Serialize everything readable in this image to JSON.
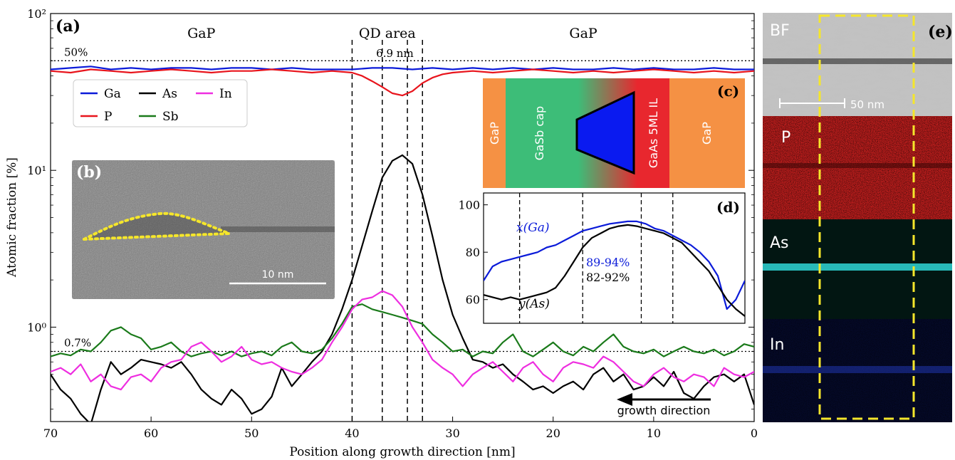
{
  "chart_data": [
    {
      "panel": "(a)",
      "type": "line",
      "xlabel": "Position along growth direction [nm]",
      "ylabel": "Atomic fraction [%]",
      "xlim": [
        70,
        0
      ],
      "ylim": [
        0.25,
        100
      ],
      "yscale": "log",
      "x_ticks": [
        70,
        60,
        50,
        40,
        30,
        20,
        10,
        0
      ],
      "y_ticks": [
        {
          "v": 1,
          "label": "10⁰"
        },
        {
          "v": 10,
          "label": "10¹"
        },
        {
          "v": 100,
          "label": "10²"
        }
      ],
      "region_labels": [
        {
          "text": "GaP",
          "x": 55
        },
        {
          "text": "QD area",
          "x": 36.5
        },
        {
          "text": "GaP",
          "x": 17
        }
      ],
      "reference_lines": [
        {
          "y": 50,
          "label": "50%"
        },
        {
          "y": 0.7,
          "label": "0.7%"
        }
      ],
      "vlines": [
        40,
        37,
        34.5,
        33
      ],
      "annotation_width": {
        "text": "6.9 nm",
        "x1": 37,
        "x2": 34.5
      },
      "arrow_label": "growth direction",
      "legend_position": "upper-left",
      "series": [
        {
          "name": "Ga",
          "color": "#0b1bd9",
          "x": [
            70,
            68,
            66,
            64,
            62,
            60,
            58,
            56,
            54,
            52,
            50,
            48,
            46,
            44,
            42,
            40,
            38,
            36,
            34,
            32,
            30,
            28,
            26,
            24,
            22,
            20,
            18,
            16,
            14,
            12,
            10,
            8,
            6,
            4,
            2,
            0
          ],
          "y": [
            44,
            45,
            46,
            44,
            45,
            44,
            45,
            45,
            44,
            45,
            45,
            44,
            45,
            44,
            44,
            44,
            45,
            45,
            44,
            45,
            44,
            45,
            44,
            45,
            44,
            45,
            44,
            44,
            45,
            44,
            45,
            44,
            44,
            45,
            44,
            44
          ]
        },
        {
          "name": "P",
          "color": "#e8141c",
          "x": [
            70,
            68,
            66,
            64,
            62,
            60,
            58,
            56,
            54,
            52,
            50,
            48,
            46,
            44,
            42,
            40,
            39,
            38,
            37,
            36,
            35,
            34,
            33,
            32,
            31,
            30,
            28,
            26,
            24,
            22,
            20,
            18,
            16,
            14,
            12,
            10,
            8,
            6,
            4,
            2,
            0
          ],
          "y": [
            43,
            42,
            44,
            43,
            42,
            43,
            44,
            43,
            42,
            43,
            43,
            44,
            43,
            42,
            43,
            42,
            40,
            37,
            34,
            31,
            30,
            32,
            36,
            39,
            41,
            42,
            43,
            42,
            43,
            44,
            43,
            42,
            43,
            42,
            43,
            44,
            43,
            42,
            43,
            42,
            43
          ]
        },
        {
          "name": "As",
          "color": "#000000",
          "x": [
            70,
            69,
            68,
            67,
            66,
            65,
            64,
            63,
            62,
            61,
            60,
            59,
            58,
            57,
            56,
            55,
            54,
            53,
            52,
            51,
            50,
            49,
            48,
            47,
            46,
            45,
            44,
            43,
            42,
            41,
            40,
            39,
            38,
            37,
            36,
            35,
            34,
            33,
            32,
            31,
            30,
            29,
            28,
            27,
            26,
            25,
            24,
            23,
            22,
            21,
            20,
            19,
            18,
            17,
            16,
            15,
            14,
            13,
            12,
            11,
            10,
            9,
            8,
            7,
            6,
            5,
            4,
            3,
            2,
            1,
            0
          ],
          "y": [
            0.5,
            0.4,
            0.35,
            0.28,
            0.24,
            0.4,
            0.6,
            0.5,
            0.55,
            0.62,
            0.6,
            0.58,
            0.55,
            0.6,
            0.5,
            0.4,
            0.35,
            0.32,
            0.4,
            0.35,
            0.28,
            0.3,
            0.36,
            0.55,
            0.42,
            0.5,
            0.6,
            0.7,
            0.9,
            1.3,
            2.0,
            3.3,
            5.5,
            9,
            11.5,
            12.5,
            11,
            7,
            3.8,
            2.0,
            1.2,
            0.85,
            0.62,
            0.6,
            0.55,
            0.58,
            0.5,
            0.45,
            0.4,
            0.42,
            0.38,
            0.42,
            0.45,
            0.4,
            0.5,
            0.55,
            0.45,
            0.5,
            0.4,
            0.42,
            0.48,
            0.42,
            0.52,
            0.38,
            0.35,
            0.42,
            0.48,
            0.5,
            0.45,
            0.5,
            0.32
          ]
        },
        {
          "name": "Sb",
          "color": "#1a7a1a",
          "x": [
            70,
            69,
            68,
            67,
            66,
            65,
            64,
            63,
            62,
            61,
            60,
            59,
            58,
            57,
            56,
            55,
            54,
            53,
            52,
            51,
            50,
            49,
            48,
            47,
            46,
            45,
            44,
            43,
            42,
            41,
            40,
            39,
            38,
            37,
            36,
            35,
            34,
            33,
            32,
            31,
            30,
            29,
            28,
            27,
            26,
            25,
            24,
            23,
            22,
            21,
            20,
            19,
            18,
            17,
            16,
            15,
            14,
            13,
            12,
            11,
            10,
            9,
            8,
            7,
            6,
            5,
            4,
            3,
            2,
            1,
            0
          ],
          "y": [
            0.65,
            0.68,
            0.66,
            0.72,
            0.7,
            0.8,
            0.95,
            1.0,
            0.9,
            0.85,
            0.72,
            0.75,
            0.8,
            0.7,
            0.65,
            0.68,
            0.7,
            0.66,
            0.7,
            0.65,
            0.68,
            0.7,
            0.66,
            0.75,
            0.8,
            0.7,
            0.68,
            0.72,
            0.85,
            1.05,
            1.35,
            1.4,
            1.3,
            1.25,
            1.2,
            1.15,
            1.1,
            1.05,
            0.9,
            0.8,
            0.7,
            0.72,
            0.65,
            0.7,
            0.68,
            0.8,
            0.9,
            0.7,
            0.65,
            0.72,
            0.8,
            0.7,
            0.66,
            0.75,
            0.7,
            0.8,
            0.9,
            0.75,
            0.7,
            0.68,
            0.72,
            0.65,
            0.7,
            0.75,
            0.7,
            0.68,
            0.72,
            0.66,
            0.7,
            0.78,
            0.75
          ]
        },
        {
          "name": "In",
          "color": "#ee2ee0",
          "x": [
            70,
            69,
            68,
            67,
            66,
            65,
            64,
            63,
            62,
            61,
            60,
            59,
            58,
            57,
            56,
            55,
            54,
            53,
            52,
            51,
            50,
            49,
            48,
            47,
            46,
            45,
            44,
            43,
            42,
            41,
            40,
            39,
            38,
            37,
            36,
            35,
            34,
            33,
            32,
            31,
            30,
            29,
            28,
            27,
            26,
            25,
            24,
            23,
            22,
            21,
            20,
            19,
            18,
            17,
            16,
            15,
            14,
            13,
            12,
            11,
            10,
            9,
            8,
            7,
            6,
            5,
            4,
            3,
            2,
            1,
            0
          ],
          "y": [
            0.52,
            0.55,
            0.5,
            0.58,
            0.45,
            0.5,
            0.42,
            0.4,
            0.48,
            0.5,
            0.45,
            0.55,
            0.6,
            0.62,
            0.75,
            0.8,
            0.7,
            0.6,
            0.65,
            0.75,
            0.62,
            0.58,
            0.6,
            0.55,
            0.52,
            0.5,
            0.55,
            0.62,
            0.8,
            1.0,
            1.3,
            1.5,
            1.55,
            1.7,
            1.6,
            1.35,
            1.0,
            0.8,
            0.62,
            0.55,
            0.5,
            0.42,
            0.5,
            0.55,
            0.6,
            0.52,
            0.45,
            0.55,
            0.6,
            0.5,
            0.45,
            0.55,
            0.6,
            0.58,
            0.55,
            0.65,
            0.6,
            0.52,
            0.45,
            0.42,
            0.5,
            0.55,
            0.48,
            0.45,
            0.5,
            0.48,
            0.42,
            0.55,
            0.5,
            0.48,
            0.52
          ]
        }
      ]
    },
    {
      "panel": "(d)",
      "type": "line",
      "xlim": [
        29,
        0
      ],
      "ylim": [
        50,
        105
      ],
      "y_ticks": [
        60,
        80,
        100
      ],
      "vlines": [
        25,
        18,
        11.5,
        8
      ],
      "annotations": [
        {
          "text": "89-94%",
          "color": "#0b1bd9"
        },
        {
          "text": "82-92%",
          "color": "#000000"
        }
      ],
      "series": [
        {
          "name": "x(Ga)",
          "color": "#0b1bd9",
          "x": [
            29,
            28,
            27,
            26,
            25,
            24,
            23,
            22,
            21,
            20,
            19,
            18,
            17,
            16,
            15,
            14,
            13,
            12,
            11,
            10,
            9,
            8,
            7,
            6,
            5,
            4,
            3,
            2,
            1,
            0
          ],
          "y": [
            68,
            74,
            76,
            77,
            78,
            79,
            80,
            82,
            83,
            85,
            87,
            89,
            90,
            91,
            92,
            92.5,
            93,
            93,
            92,
            90,
            89,
            87,
            85,
            83,
            80,
            76,
            70,
            56,
            60,
            68
          ]
        },
        {
          "name": "y(As)",
          "color": "#000000",
          "x": [
            29,
            28,
            27,
            26,
            25,
            24,
            23,
            22,
            21,
            20,
            19,
            18,
            17,
            16,
            15,
            14,
            13,
            12,
            11,
            10,
            9,
            8,
            7,
            6,
            5,
            4,
            3,
            2,
            1,
            0
          ],
          "y": [
            62,
            61,
            60,
            61,
            60,
            61,
            62,
            63,
            65,
            70,
            76,
            82,
            86,
            88,
            90,
            91,
            91.5,
            91,
            90,
            89,
            88,
            86,
            84,
            80,
            76,
            72,
            66,
            60,
            56,
            53
          ]
        }
      ]
    }
  ],
  "panel_labels": {
    "a": "(a)",
    "b": "(b)",
    "c": "(c)",
    "d": "(d)",
    "e": "(e)"
  },
  "tem_inset": {
    "scale_label": "10 nm"
  },
  "schematic_c": {
    "layers": [
      {
        "name": "gap-left",
        "label": "GaP",
        "color": "#f59144"
      },
      {
        "name": "gasb-cap",
        "label": "GaSb cap",
        "color": "#3dbd78"
      },
      {
        "name": "gaas-il",
        "label": "GaAs 5ML IL",
        "color": "#e8272e"
      },
      {
        "name": "gap-right",
        "label": "GaP",
        "color": "#f59144"
      }
    ],
    "qd_color": "#0a1af0"
  },
  "eds_maps": [
    {
      "label": "BF",
      "scale_label": "50 nm"
    },
    {
      "label": "P",
      "color": "#d42a2a"
    },
    {
      "label": "As",
      "color": "#2fd6d6"
    },
    {
      "label": "In",
      "color": "#3050ff"
    }
  ]
}
